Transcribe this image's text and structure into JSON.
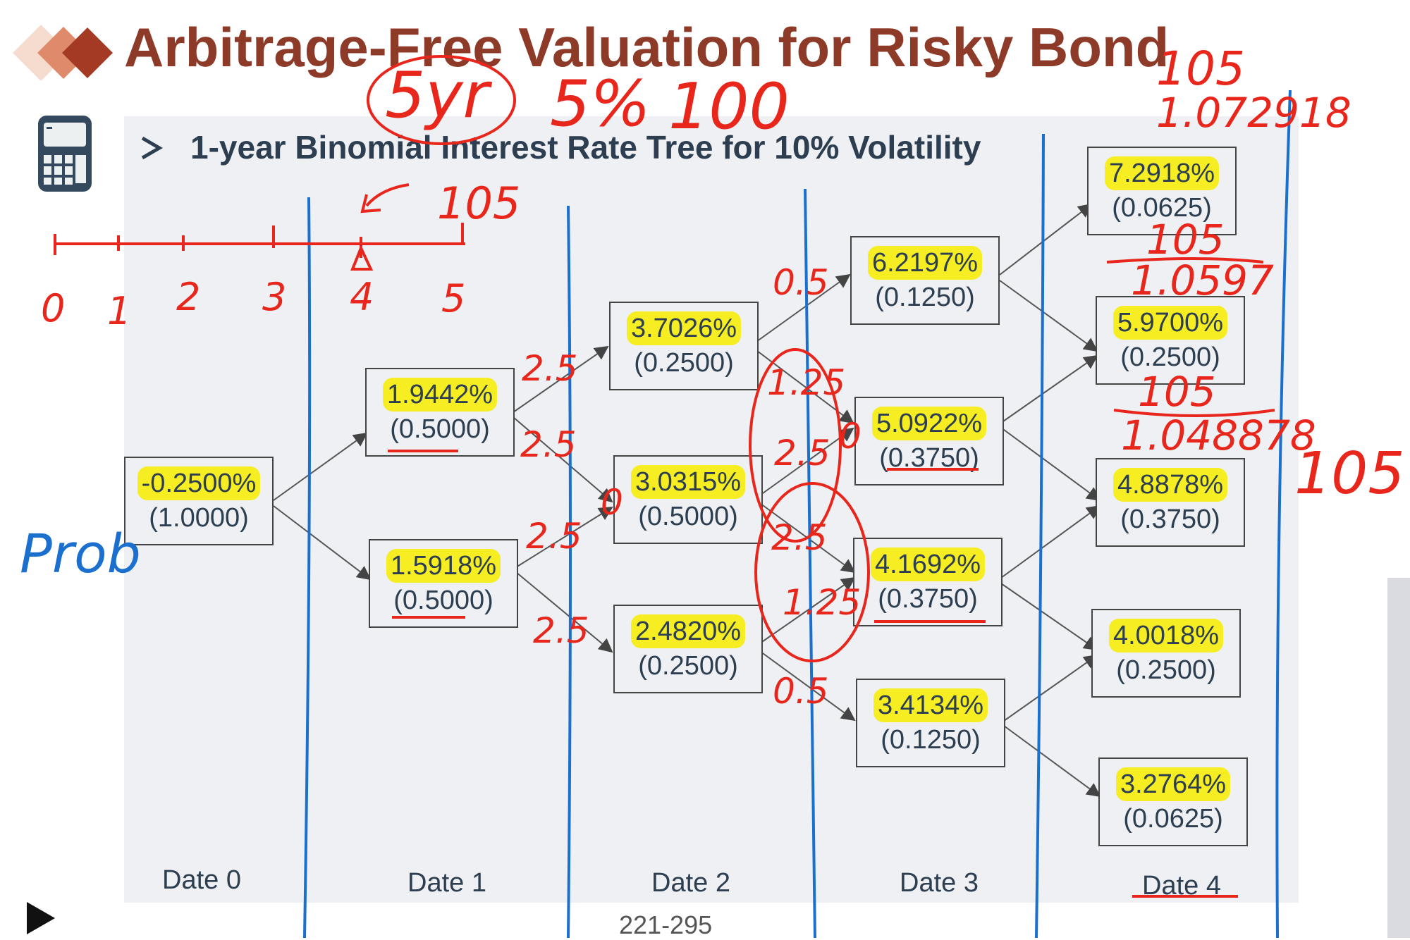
{
  "title": "Arbitrage-Free Valuation for Risky Bond",
  "subtitle": "1-year Binomial Interest Rate Tree for 10% Volatility",
  "page_number": "221-295",
  "dates": [
    "Date 0",
    "Date 1",
    "Date 2",
    "Date 3",
    "Date 4"
  ],
  "nodes": {
    "d0": [
      {
        "rate": "-0.2500%",
        "prob": "(1.0000)"
      }
    ],
    "d1": [
      {
        "rate": "1.9442%",
        "prob": "(0.5000)"
      },
      {
        "rate": "1.5918%",
        "prob": "(0.5000)"
      }
    ],
    "d2": [
      {
        "rate": "3.7026%",
        "prob": "(0.2500)"
      },
      {
        "rate": "3.0315%",
        "prob": "(0.5000)"
      },
      {
        "rate": "2.4820%",
        "prob": "(0.2500)"
      }
    ],
    "d3": [
      {
        "rate": "6.2197%",
        "prob": "(0.1250)"
      },
      {
        "rate": "5.0922%",
        "prob": "(0.3750)"
      },
      {
        "rate": "4.1692%",
        "prob": "(0.3750)"
      },
      {
        "rate": "3.4134%",
        "prob": "(0.1250)"
      }
    ],
    "d4": [
      {
        "rate": "7.2918%",
        "prob": "(0.0625)"
      },
      {
        "rate": "5.9700%",
        "prob": "(0.2500)"
      },
      {
        "rate": "4.8878%",
        "prob": "(0.3750)"
      },
      {
        "rate": "4.0018%",
        "prob": "(0.2500)"
      },
      {
        "rate": "3.2764%",
        "prob": "(0.0625)"
      }
    ]
  },
  "annotations": {
    "top": [
      "5yr",
      "5%",
      "100",
      "105"
    ],
    "timeline": [
      "0",
      "1",
      "2",
      "3",
      "4",
      "5"
    ],
    "timeline_arrow": "105",
    "prob": "Prob",
    "right": "105",
    "d4_fractions": [
      {
        "num": "105",
        "den": "1.072918"
      },
      {
        "num": "105",
        "den": "1.0597"
      },
      {
        "num": "105",
        "den": "1.048878"
      }
    ],
    "edges": [
      "2.5",
      "2.5",
      "2.5",
      "2.5",
      "0.5",
      "1.25",
      "2.5",
      "2.5",
      "1.25",
      "0.5"
    ],
    "zeros": [
      "0",
      "0"
    ]
  },
  "colors": {
    "title": "#8e3a28",
    "highlight": "#f6ee23",
    "ink_red": "#e8261c",
    "ink_blue": "#1a6fcf"
  }
}
